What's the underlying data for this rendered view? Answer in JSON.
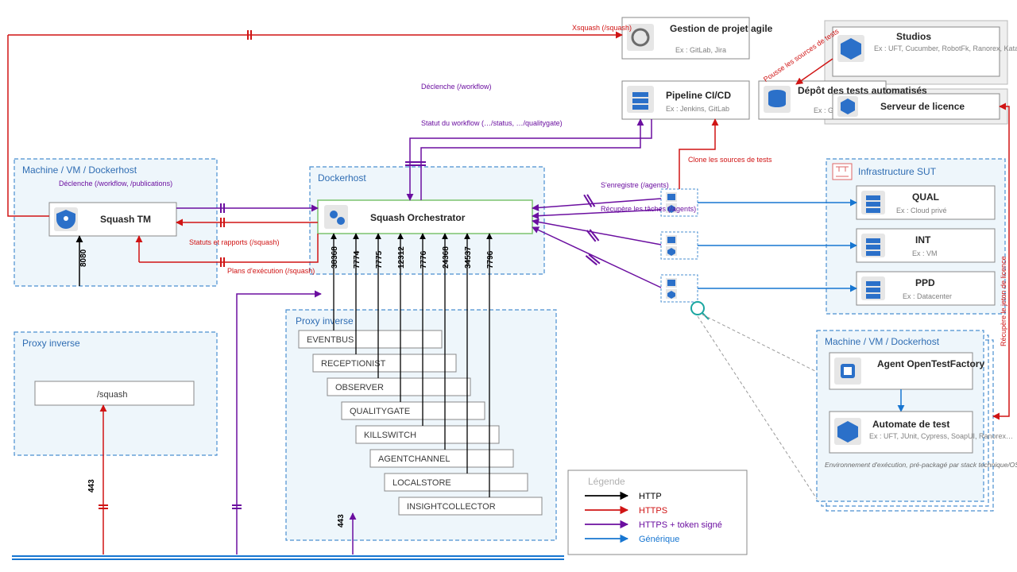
{
  "colors": {
    "http": "#000000",
    "https": "#d01414",
    "token": "#6b0fa0",
    "generic": "#1776d1",
    "boxFill": "#eef6fb",
    "boxStroke": "#4a8fd0",
    "iconBg": "#e6e6e6",
    "iconFg": "#2b70c9",
    "grey": "#808080"
  },
  "containers": {
    "tm": {
      "label": "Machine / VM / Dockerhost"
    },
    "orch": {
      "label": "Dockerhost"
    },
    "proxyInv": {
      "label": "Proxy inverse"
    },
    "proxyInv2": {
      "label": "Proxy inverse"
    },
    "sut": {
      "label": "Infrastructure SUT"
    },
    "agentHost": {
      "label": "Machine / VM / Dockerhost"
    }
  },
  "nodes": {
    "squashTM": {
      "title": "Squash TM",
      "port": "8080"
    },
    "orch": {
      "title": "Squash Orchestrator"
    },
    "agile": {
      "title": "Gestion de projet agile",
      "sub": "Ex : GitLab, Jira"
    },
    "pipeline": {
      "title": "Pipeline CI/CD",
      "sub": "Ex : Jenkins, GitLab"
    },
    "repo": {
      "title": "Dépôt des tests automatisés",
      "sub": "Ex : GitLab"
    },
    "studios": {
      "title": "Studios",
      "sub": "Ex : UFT, Cucumber, RobotFk, Ranorex, Katalon…"
    },
    "license": {
      "title": "Serveur de licence"
    },
    "qual": {
      "title": "QUAL",
      "sub": "Ex : Cloud privé"
    },
    "int": {
      "title": "INT",
      "sub": "Ex : VM"
    },
    "ppd": {
      "title": "PPD",
      "sub": "Ex : Datacenter"
    },
    "agentOTF": {
      "title": "Agent OpenTestFactory"
    },
    "automate": {
      "title": "Automate de test",
      "sub": "Ex : UFT, JUnit, Cypress, SoapUI, Ranorex…"
    },
    "agentNote": "Environnement d'exécution, pré-packagé par stack technique/OS",
    "proxySquash": {
      "label": "/squash"
    }
  },
  "ports": [
    "38368",
    "7774",
    "7775",
    "12312",
    "7776",
    "24368",
    "34537",
    "7796"
  ],
  "proxyServices": [
    "EVENTBUS",
    "RECEPTIONIST",
    "OBSERVER",
    "QUALITYGATE",
    "KILLSWITCH",
    "AGENTCHANNEL",
    "LOCALSTORE",
    "INSIGHTCOLLECTOR"
  ],
  "edgeLabels": {
    "xsquash": "Xsquash (/squash)",
    "declenche": "Déclenche (/workflow, /publications)",
    "statuts": "Statuts et rapports (/squash)",
    "plans": "Plans d'exécution (/squash)",
    "declenche2": "Déclenche (/workflow)",
    "workflow": "Statut du workflow (…/status, …/qualitygate)",
    "pousse": "Pousse les sources de tests",
    "clone": "Clone les sources de tests",
    "enregistre": "S'enregistre (/agents)",
    "taches": "Récupère les tâches (/agents)",
    "port443a": "443",
    "port443b": "443",
    "recupLicence": "Récupère le jeton de licence"
  },
  "legend": {
    "title": "Légende",
    "items": [
      {
        "label": "HTTP",
        "colorKey": "http"
      },
      {
        "label": "HTTPS",
        "colorKey": "https"
      },
      {
        "label": "HTTPS + token signé",
        "colorKey": "token"
      },
      {
        "label": "Générique",
        "colorKey": "generic"
      }
    ]
  }
}
